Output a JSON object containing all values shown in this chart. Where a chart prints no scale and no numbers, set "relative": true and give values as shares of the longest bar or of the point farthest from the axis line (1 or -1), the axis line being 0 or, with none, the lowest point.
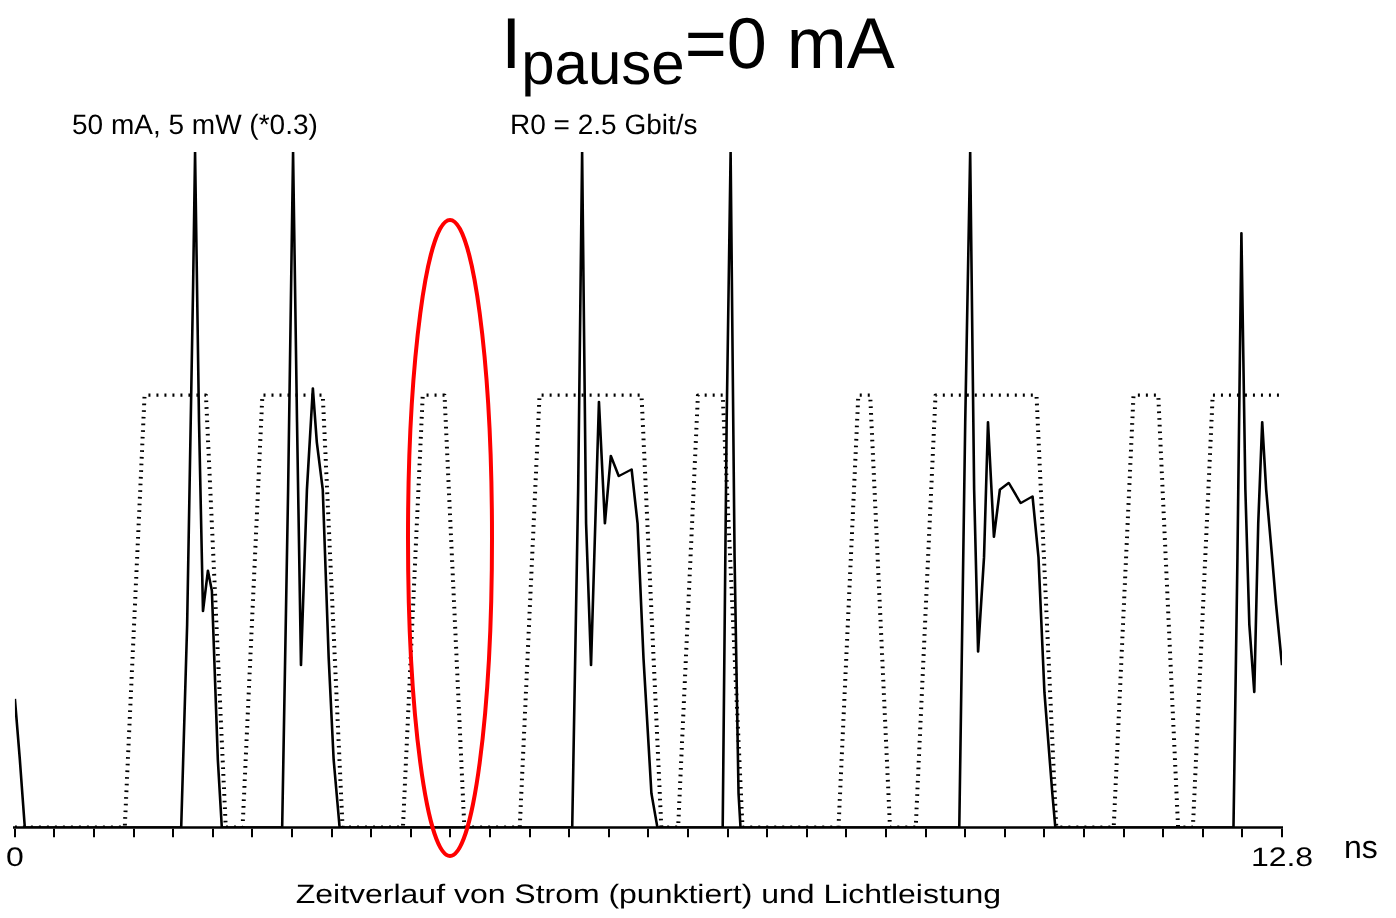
{
  "chart_data": {
    "type": "line",
    "title": "I$_{pause}$=0 mA",
    "xlabel": "Zeitverlauf von Strom (punktiert) und Lichtleistung",
    "annotations": [
      "50 mA, 5 mW (*0.3)",
      "R0 = 2.5 Gbit/s",
      "ns"
    ],
    "relative": true,
    "xlim": [
      0,
      12.8
    ],
    "xticks": [
      0,
      {
        "value": 0.4,
        "label": null
      },
      {
        "value": 0.8,
        "label": null
      },
      {
        "value": 1.2,
        "label": null
      },
      {
        "value": 1.6,
        "label": null
      },
      {
        "value": 2,
        "label": null
      },
      {
        "value": 2.4,
        "label": null
      },
      {
        "value": 2.8,
        "label": null
      },
      {
        "value": 3.2,
        "label": null
      },
      {
        "value": 3.6,
        "label": null
      },
      {
        "value": 4,
        "label": null
      },
      {
        "value": 4.4,
        "label": null
      },
      {
        "value": 4.8,
        "label": null
      },
      {
        "value": 5.2,
        "label": null
      },
      {
        "value": 5.6,
        "label": null
      },
      {
        "value": 6,
        "label": null
      },
      {
        "value": 6.4,
        "label": null
      },
      {
        "value": 6.8,
        "label": null
      },
      {
        "value": 7.2,
        "label": null
      },
      {
        "value": 7.6,
        "label": null
      },
      {
        "value": 8,
        "label": null
      },
      {
        "value": 8.4,
        "label": null
      },
      {
        "value": 8.8,
        "label": null
      },
      {
        "value": 9.2,
        "label": null
      },
      {
        "value": 9.6,
        "label": null
      },
      {
        "value": 10,
        "label": null
      },
      {
        "value": 10.4,
        "label": null
      },
      {
        "value": 10.8,
        "label": null
      },
      {
        "value": 11.2,
        "label": null
      },
      {
        "value": 11.6,
        "label": null
      },
      {
        "value": 12,
        "label": null
      },
      {
        "value": 12.4,
        "label": null
      },
      12.8
    ],
    "series": [
      {
        "color": "#000000",
        "line_style": "dotted",
        "x": [
          0,
          1.11,
          1.31,
          1.93,
          2.13,
          2.3,
          2.5,
          3.11,
          3.31,
          3.92,
          4.12,
          4.34,
          4.54,
          5.1,
          5.3,
          6.33,
          6.53,
          6.7,
          6.9,
          7.15,
          7.35,
          8.32,
          8.52,
          8.64,
          8.84,
          9.1,
          9.3,
          10.32,
          10.52,
          11.1,
          11.3,
          11.55,
          11.75,
          11.9,
          12.1,
          12.78
        ],
        "values": [
          0,
          0,
          0.64,
          0.64,
          0,
          0,
          0.64,
          0.64,
          0,
          0,
          0.64,
          0.64,
          0,
          0,
          0.64,
          0.64,
          0,
          0,
          0.64,
          0.64,
          0,
          0,
          0.64,
          0.64,
          0,
          0,
          0.64,
          0.64,
          0,
          0,
          0.64,
          0.64,
          0,
          0,
          0.64,
          0.64
        ]
      },
      {
        "color": "#000000",
        "line_style": "solid",
        "x": [
          0,
          0.05,
          0.1,
          1.68,
          1.74,
          1.8,
          1.82,
          1.86,
          1.9,
          1.95,
          1.99,
          2.05,
          2.09,
          2.7,
          2.76,
          2.81,
          2.85,
          2.89,
          2.95,
          3.01,
          3.05,
          3.11,
          3.17,
          3.22,
          3.28,
          5.63,
          5.69,
          5.73,
          5.77,
          5.82,
          5.9,
          5.96,
          6.02,
          6.1,
          6.23,
          6.29,
          6.35,
          6.43,
          6.49,
          7.15,
          7.19,
          7.23,
          7.27,
          7.31,
          7.33,
          9.54,
          9.6,
          9.65,
          9.69,
          9.73,
          9.79,
          9.83,
          9.89,
          9.95,
          10.04,
          10.16,
          10.28,
          10.34,
          10.4,
          10.48,
          10.51,
          12.31,
          12.35,
          12.39,
          12.43,
          12.47,
          12.52,
          12.56,
          12.6,
          12.64,
          12.7,
          12.74,
          12.8
        ],
        "values": [
          0.19,
          0.1,
          0,
          0,
          0.3,
          0.8,
          1,
          0.6,
          0.32,
          0.38,
          0.35,
          0.1,
          0,
          0,
          0.5,
          1,
          0.6,
          0.24,
          0.5,
          0.65,
          0.57,
          0.5,
          0.25,
          0.1,
          0,
          0,
          0.5,
          1,
          0.45,
          0.24,
          0.63,
          0.45,
          0.55,
          0.52,
          0.53,
          0.45,
          0.25,
          0.05,
          0,
          0,
          0.6,
          1,
          0.4,
          0.05,
          0,
          0,
          0.6,
          1,
          0.5,
          0.26,
          0.4,
          0.6,
          0.43,
          0.5,
          0.51,
          0.48,
          0.49,
          0.4,
          0.2,
          0.05,
          0,
          0,
          0.4,
          0.88,
          0.5,
          0.3,
          0.2,
          0.45,
          0.6,
          0.5,
          0.4,
          0.33,
          0.24
        ]
      }
    ]
  }
}
